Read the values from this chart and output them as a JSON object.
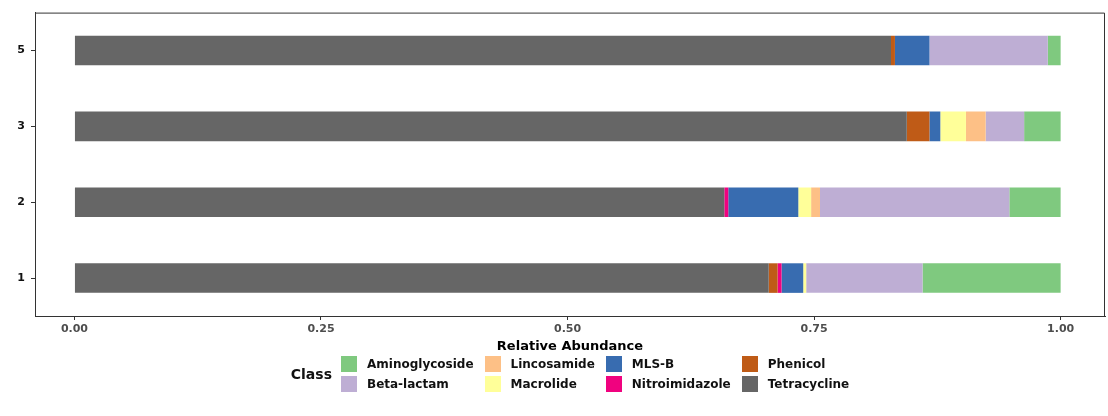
{
  "chart_data": {
    "type": "bar",
    "orientation": "horizontal",
    "stacked": true,
    "xlabel": "Relative Abundance",
    "legend_title": "Class",
    "legend": "bottom",
    "grid": false,
    "categories": [
      "5",
      "3",
      "2",
      "1"
    ],
    "xlim": [
      -0.04,
      1.045
    ],
    "xticks": [
      {
        "value": 0,
        "label": "0.00"
      },
      {
        "value": 0.25,
        "label": "0.25"
      },
      {
        "value": 0.5,
        "label": "0.50"
      },
      {
        "value": 0.75,
        "label": "0.75"
      },
      {
        "value": 1,
        "label": "1.00"
      }
    ],
    "series": [
      {
        "name": "Tetracycline",
        "color": "#666666",
        "values": [
          0.828,
          0.844,
          0.659,
          0.704
        ]
      },
      {
        "name": "Phenicol",
        "color": "#bf5b17",
        "values": [
          0.004,
          0.023,
          null,
          0.009
        ]
      },
      {
        "name": "Nitroimidazole",
        "color": "#f0027f",
        "values": [
          null,
          null,
          0.004,
          0.004
        ]
      },
      {
        "name": "MLS-B",
        "color": "#386cb0",
        "values": [
          0.035,
          0.011,
          0.071,
          0.022
        ]
      },
      {
        "name": "Macrolide",
        "color": "#ffff99",
        "values": [
          null,
          0.026,
          0.013,
          0.003
        ]
      },
      {
        "name": "Lincosamide",
        "color": "#fdc086",
        "values": [
          null,
          0.02,
          0.009,
          null
        ]
      },
      {
        "name": "Beta-lactam",
        "color": "#beaed4",
        "values": [
          0.12,
          0.039,
          0.192,
          0.118
        ]
      },
      {
        "name": "Aminoglycoside",
        "color": "#7fc97f",
        "values": [
          0.013,
          0.037,
          0.052,
          0.14
        ]
      }
    ]
  }
}
